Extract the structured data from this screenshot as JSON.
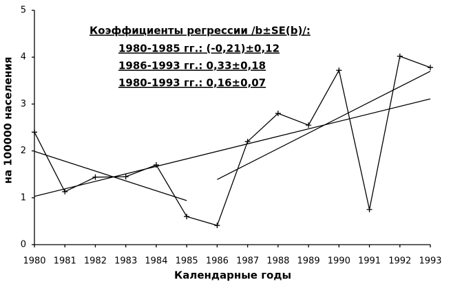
{
  "chart_data": {
    "type": "line",
    "ylabel": "на 100000 населения",
    "xlabel": "Календарные годы",
    "annotations": [
      "Коэффициенты регрессии /b±SE(b)/:",
      "1980-1985 гг.: (-0,21)±0,12",
      "1986-1993 гг.: 0,33±0,18",
      "1980-1993 гг.: 0,16±0,07"
    ],
    "x": [
      1980,
      1981,
      1982,
      1983,
      1984,
      1985,
      1986,
      1987,
      1988,
      1989,
      1990,
      1991,
      1992,
      1993
    ],
    "series": [
      {
        "color": "#000000",
        "values": [
          2.4,
          1.13,
          1.44,
          1.45,
          1.7,
          0.6,
          0.41,
          2.2,
          2.8,
          2.55,
          3.72,
          0.75,
          4.02,
          3.78
        ]
      }
    ],
    "fits": [
      {
        "x": [
          1980,
          1985
        ],
        "values": [
          1.99,
          0.94
        ]
      },
      {
        "x": [
          1986,
          1993
        ],
        "values": [
          1.39,
          3.7
        ]
      },
      {
        "x": [
          1980,
          1993
        ],
        "values": [
          1.03,
          3.11
        ]
      }
    ],
    "xlim": [
      1980,
      1993
    ],
    "ylim": [
      0,
      5
    ],
    "xticks": [
      1980,
      1981,
      1982,
      1983,
      1984,
      1985,
      1986,
      1987,
      1988,
      1989,
      1990,
      1991,
      1992,
      1993
    ],
    "yticks": [
      0,
      1,
      2,
      3,
      4,
      5
    ]
  }
}
